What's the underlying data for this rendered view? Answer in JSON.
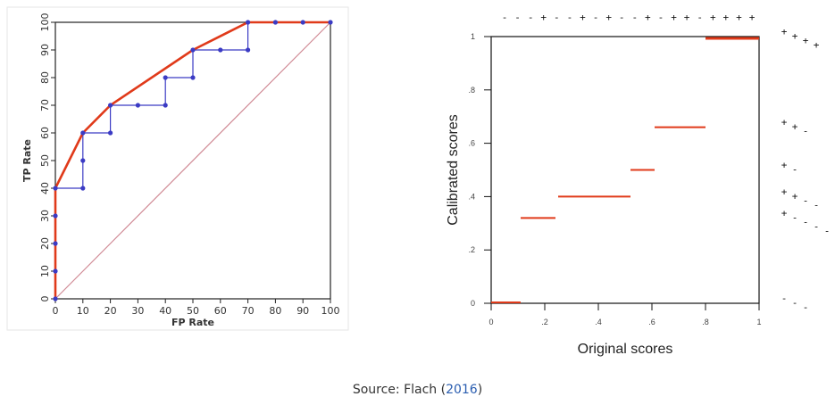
{
  "caption": {
    "prefix": "Source: Flach (",
    "link": "2016",
    "suffix": ")"
  },
  "chart_data": [
    {
      "type": "line",
      "xlabel": "FP Rate",
      "ylabel": "TP Rate",
      "xlim": [
        0,
        100
      ],
      "ylim": [
        0,
        100
      ],
      "xticks": [
        "0",
        "10",
        "20",
        "30",
        "40",
        "50",
        "60",
        "70",
        "80",
        "90",
        "100"
      ],
      "yticks": [
        "0",
        "10",
        "20",
        "30",
        "40",
        "50",
        "60",
        "70",
        "80",
        "90",
        "100"
      ],
      "grid": false,
      "colors": {
        "roc": "#3b3bc4",
        "hull": "#e03a1a",
        "diagonal": "#d08a95"
      },
      "series": [
        {
          "kind": "roc-staircase",
          "points": [
            [
              0,
              0
            ],
            [
              0,
              10
            ],
            [
              0,
              20
            ],
            [
              0,
              30
            ],
            [
              0,
              40
            ],
            [
              10,
              40
            ],
            [
              10,
              50
            ],
            [
              10,
              60
            ],
            [
              20,
              60
            ],
            [
              20,
              70
            ],
            [
              30,
              70
            ],
            [
              40,
              70
            ],
            [
              40,
              80
            ],
            [
              50,
              80
            ],
            [
              50,
              90
            ],
            [
              60,
              90
            ],
            [
              70,
              90
            ],
            [
              70,
              100
            ],
            [
              80,
              100
            ],
            [
              90,
              100
            ],
            [
              100,
              100
            ]
          ]
        },
        {
          "kind": "convex-hull",
          "points": [
            [
              0,
              0
            ],
            [
              0,
              40
            ],
            [
              10,
              60
            ],
            [
              20,
              70
            ],
            [
              50,
              90
            ],
            [
              70,
              100
            ],
            [
              100,
              100
            ]
          ]
        },
        {
          "kind": "diagonal",
          "points": [
            [
              0,
              0
            ],
            [
              100,
              100
            ]
          ]
        }
      ]
    },
    {
      "type": "line",
      "xlabel": "Original scores",
      "ylabel": "Calibrated scores",
      "xlim": [
        0,
        1
      ],
      "ylim": [
        0,
        1
      ],
      "xticks": [
        "0",
        ".2",
        ".4",
        ".6",
        ".8",
        "1"
      ],
      "yticks": [
        "0",
        ".2",
        ".4",
        ".6",
        ".8",
        "1"
      ],
      "grid": false,
      "colors": {
        "step": "#e03a1a"
      },
      "steps": [
        {
          "x0": 0.0,
          "x1": 0.11,
          "y": 0.0
        },
        {
          "x0": 0.11,
          "x1": 0.24,
          "y": 0.32
        },
        {
          "x0": 0.25,
          "x1": 0.52,
          "y": 0.4
        },
        {
          "x0": 0.52,
          "x1": 0.61,
          "y": 0.5
        },
        {
          "x0": 0.61,
          "x1": 0.8,
          "y": 0.66
        },
        {
          "x0": 0.8,
          "x1": 1.03,
          "y": 1.0
        }
      ],
      "top_marks": [
        "-",
        "-",
        "-",
        "+",
        "-",
        "-",
        "+",
        "-",
        "+",
        "-",
        "-",
        "+",
        "-",
        "+",
        "+",
        "-",
        "+",
        "+",
        "+",
        "+"
      ],
      "right_marks": [
        {
          "y": 1.0,
          "marks": [
            "+",
            "+",
            "+",
            "+"
          ]
        },
        {
          "y": 0.66,
          "marks": [
            "+",
            "+",
            "-"
          ]
        },
        {
          "y": 0.5,
          "marks": [
            "+",
            "-"
          ]
        },
        {
          "y": 0.4,
          "marks": [
            "+",
            "+",
            "-",
            "-"
          ]
        },
        {
          "y": 0.32,
          "marks": [
            "+",
            "-",
            "-",
            "-",
            "-"
          ]
        },
        {
          "y": 0.0,
          "marks": [
            "-",
            "-",
            "-"
          ]
        }
      ]
    }
  ]
}
